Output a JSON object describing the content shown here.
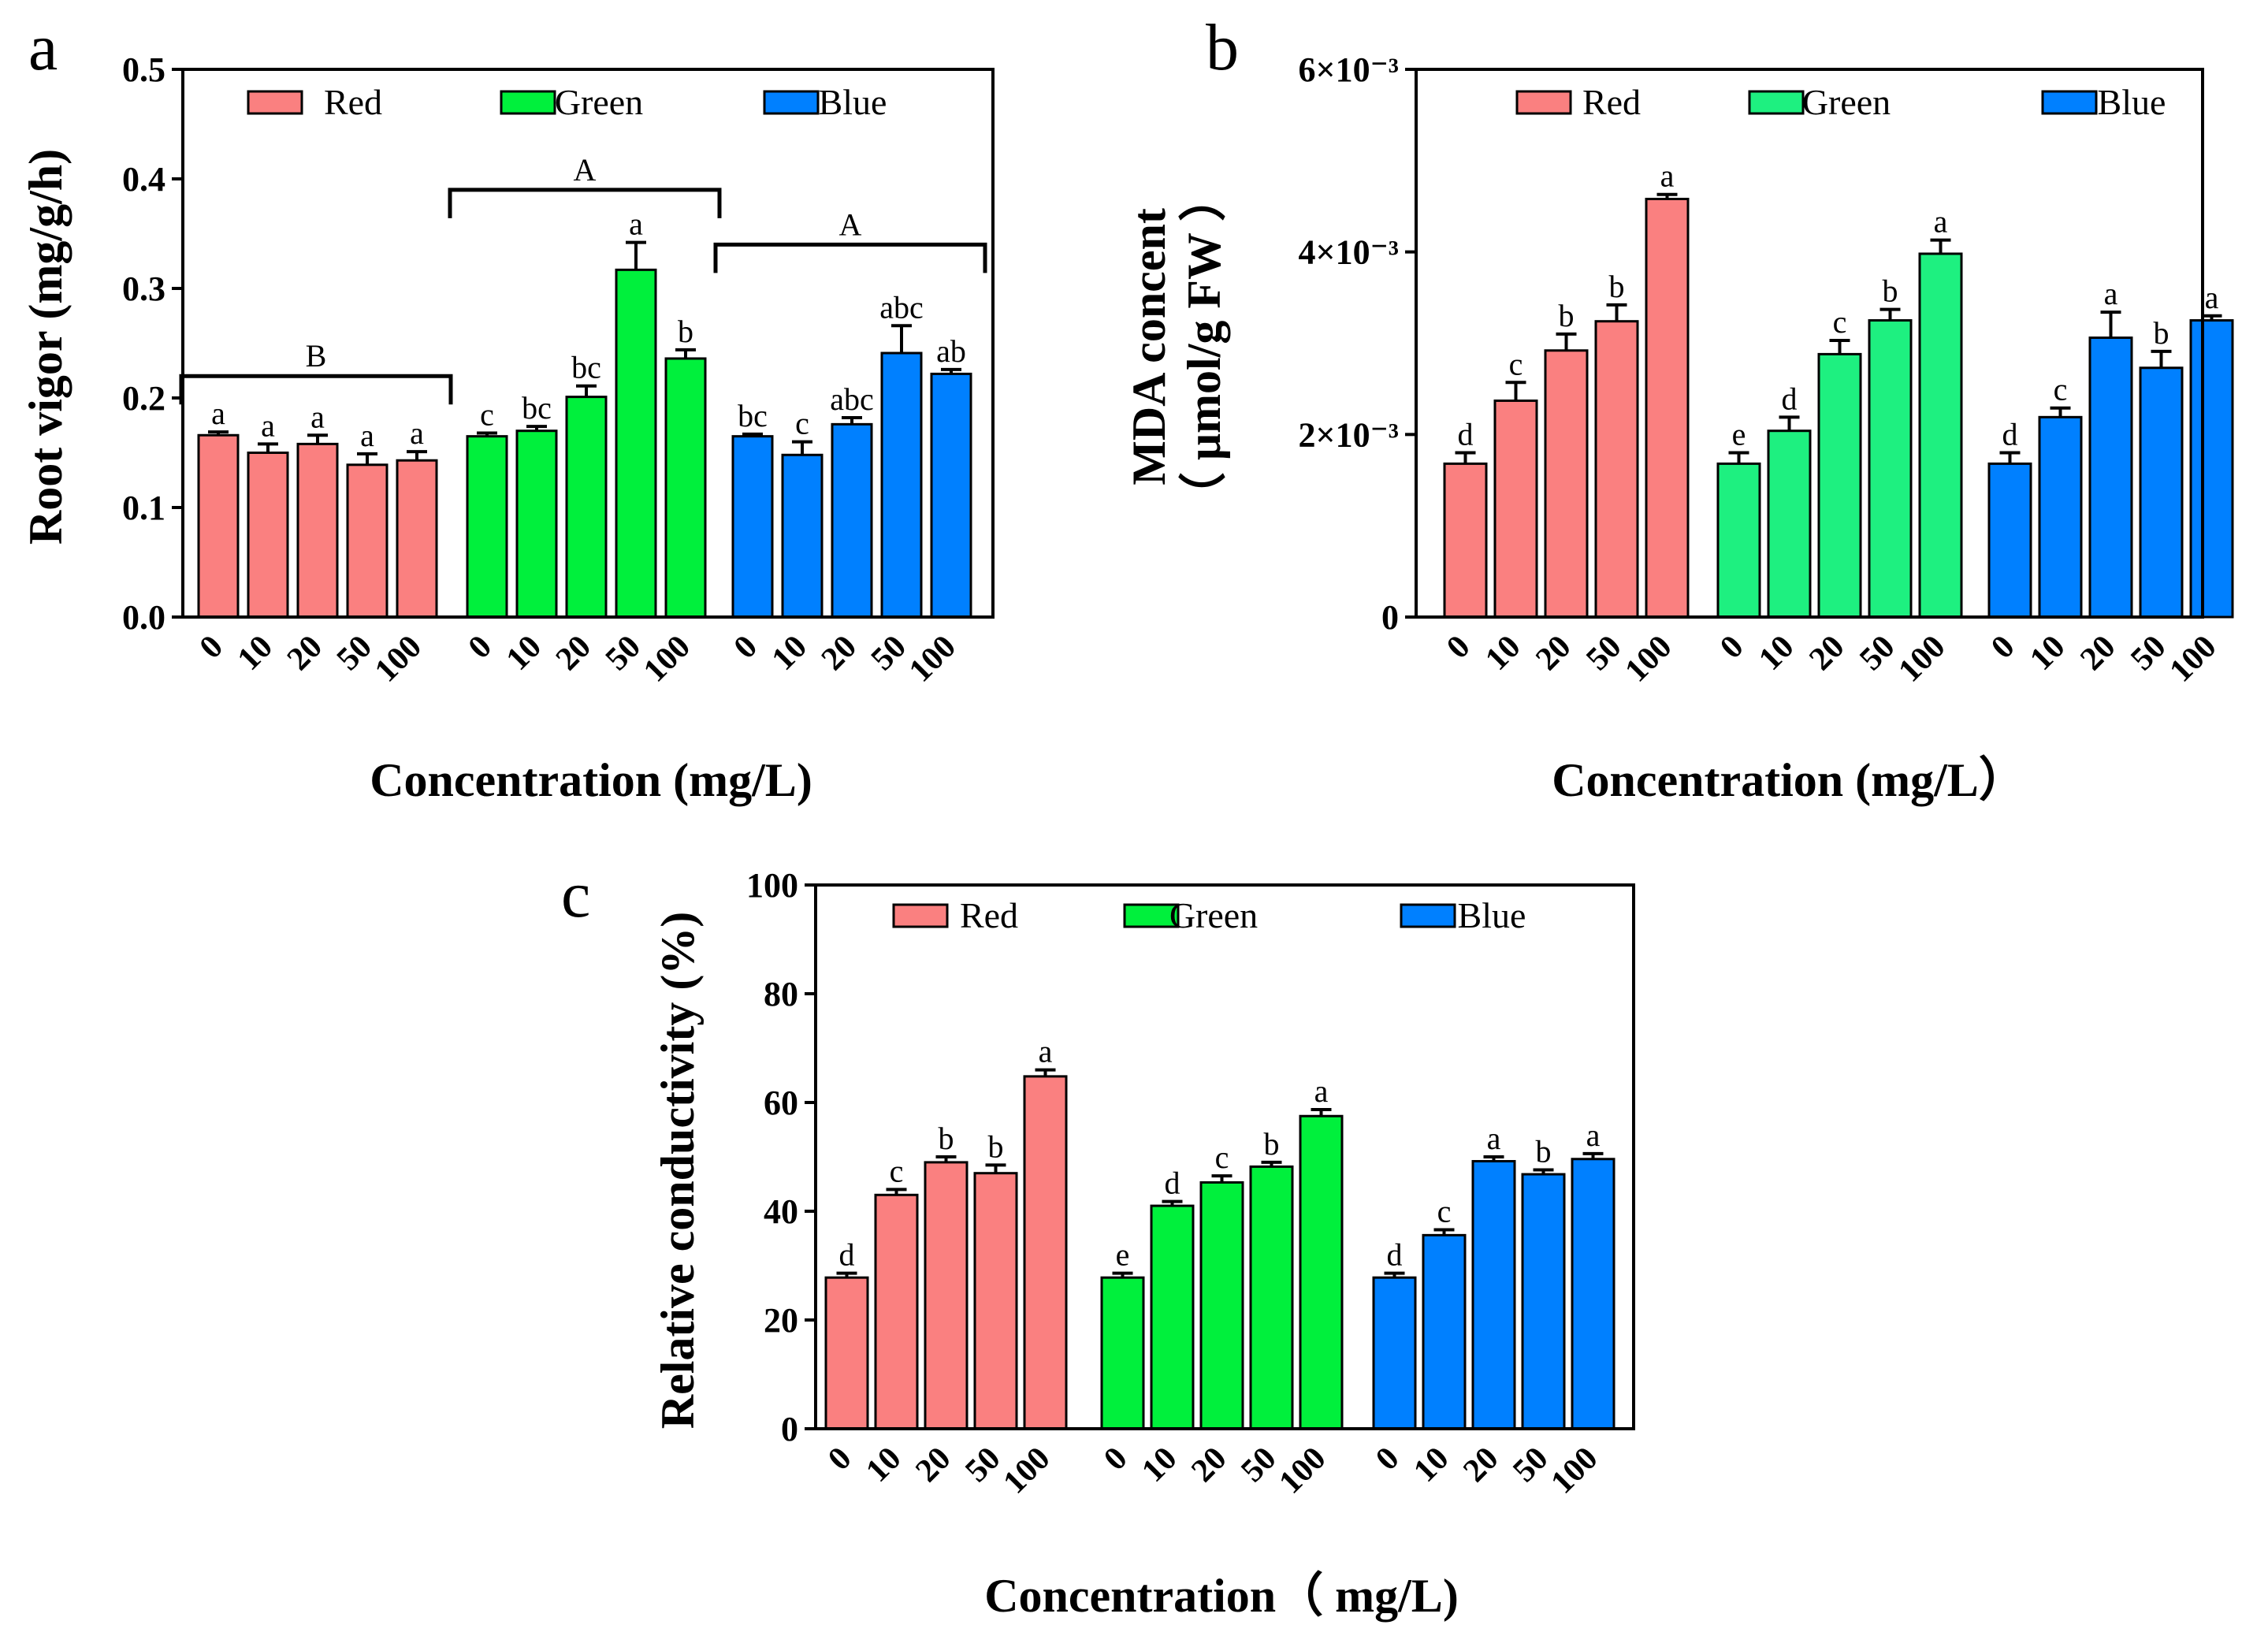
{
  "colors": {
    "Red": "#fa8080",
    "Green_a": "#00f03c",
    "Green_b": "#1ef080",
    "Green_c": "#00f03c",
    "Blue": "#0080ff"
  },
  "chart_data": [
    {
      "id": "a",
      "type": "bar",
      "panel_label": "a",
      "title": "",
      "xlabel": "Concentration (mg/L)",
      "ylabel": "Root vigor (mg/g/h)",
      "ylabel_line2": "",
      "ylim": [
        0,
        0.5
      ],
      "yticks": [
        0.0,
        0.1,
        0.2,
        0.3,
        0.4,
        0.5
      ],
      "ytick_labels": [
        "0.0",
        "0.1",
        "0.2",
        "0.3",
        "0.4",
        "0.5"
      ],
      "categories": [
        "0",
        "10",
        "20",
        "50",
        "100"
      ],
      "legend_position": "top",
      "series": [
        {
          "name": "Red",
          "color_key": "Red",
          "values": [
            0.166,
            0.15,
            0.158,
            0.139,
            0.143
          ],
          "errors": [
            0.003,
            0.008,
            0.008,
            0.01,
            0.008
          ],
          "sig": [
            "a",
            "a",
            "a",
            "a",
            "a"
          ]
        },
        {
          "name": "Green",
          "color_key": "Green_a",
          "values": [
            0.165,
            0.17,
            0.201,
            0.317,
            0.236
          ],
          "errors": [
            0.003,
            0.004,
            0.01,
            0.025,
            0.008
          ],
          "sig": [
            "c",
            "bc",
            "bc",
            "a",
            "b"
          ]
        },
        {
          "name": "Blue",
          "color_key": "Blue",
          "values": [
            0.165,
            0.148,
            0.176,
            0.241,
            0.222
          ],
          "errors": [
            0.002,
            0.012,
            0.006,
            0.025,
            0.004
          ],
          "sig": [
            "bc",
            "c",
            "abc",
            "abc",
            "ab"
          ]
        }
      ],
      "group_brackets": [
        {
          "series": 0,
          "label": "B",
          "value": 0.22
        },
        {
          "series": 1,
          "label": "A",
          "value": 0.39
        },
        {
          "series": 2,
          "label": "A",
          "value": 0.34
        }
      ]
    },
    {
      "id": "b",
      "type": "bar",
      "panel_label": "b",
      "title": "",
      "xlabel": "Concentration (mg/L）",
      "ylabel": "MDA concent",
      "ylabel_line2": "（ μmol/g FW ）",
      "ylim": [
        0,
        0.006
      ],
      "yticks": [
        0,
        0.002,
        0.004,
        0.006
      ],
      "ytick_labels": [
        "0",
        "2×10⁻³",
        "4×10⁻³",
        "6×10⁻³"
      ],
      "categories": [
        "0",
        "10",
        "20",
        "50",
        "100"
      ],
      "legend_position": "top",
      "series": [
        {
          "name": "Red",
          "color_key": "Red",
          "values": [
            0.00168,
            0.00237,
            0.00292,
            0.00324,
            0.00458
          ],
          "errors": [
            0.00012,
            0.0002,
            0.00018,
            0.00018,
            5e-05
          ],
          "sig": [
            "d",
            "c",
            "b",
            "b",
            "a"
          ]
        },
        {
          "name": "Green",
          "color_key": "Green_b",
          "values": [
            0.00168,
            0.00204,
            0.00288,
            0.00325,
            0.00398
          ],
          "errors": [
            0.00012,
            0.00015,
            0.00015,
            0.00012,
            0.00015
          ],
          "sig": [
            "e",
            "d",
            "c",
            "b",
            "a"
          ]
        },
        {
          "name": "Blue",
          "color_key": "Blue",
          "values": [
            0.00168,
            0.00219,
            0.00306,
            0.00273,
            0.00325
          ],
          "errors": [
            0.00012,
            0.0001,
            0.00028,
            0.00018,
            5e-05
          ],
          "sig": [
            "d",
            "c",
            "a",
            "b",
            "a"
          ]
        }
      ],
      "group_brackets": []
    },
    {
      "id": "c",
      "type": "bar",
      "panel_label": "c",
      "title": "",
      "xlabel": "Concentration（ mg/L)",
      "ylabel": "Relative conductivity (%)",
      "ylabel_line2": "",
      "ylim": [
        0,
        100
      ],
      "yticks": [
        0,
        20,
        40,
        60,
        80,
        100
      ],
      "ytick_labels": [
        "0",
        "20",
        "40",
        "60",
        "80",
        "100"
      ],
      "categories": [
        "0",
        "10",
        "20",
        "50",
        "100"
      ],
      "legend_position": "top",
      "series": [
        {
          "name": "Red",
          "color_key": "Red",
          "values": [
            27.8,
            43.0,
            49.0,
            47.0,
            64.8
          ],
          "errors": [
            0.8,
            1.0,
            1.0,
            1.5,
            1.2
          ],
          "sig": [
            "d",
            "c",
            "b",
            "b",
            "a"
          ]
        },
        {
          "name": "Green",
          "color_key": "Green_c",
          "values": [
            27.8,
            41.0,
            45.3,
            48.2,
            57.5
          ],
          "errors": [
            0.8,
            0.8,
            1.2,
            0.8,
            1.2
          ],
          "sig": [
            "e",
            "d",
            "c",
            "b",
            "a"
          ]
        },
        {
          "name": "Blue",
          "color_key": "Blue",
          "values": [
            27.8,
            35.6,
            49.2,
            46.8,
            49.6
          ],
          "errors": [
            0.8,
            1.0,
            0.8,
            0.8,
            1.0
          ],
          "sig": [
            "d",
            "c",
            "a",
            "b",
            "a"
          ]
        }
      ],
      "group_brackets": []
    }
  ]
}
